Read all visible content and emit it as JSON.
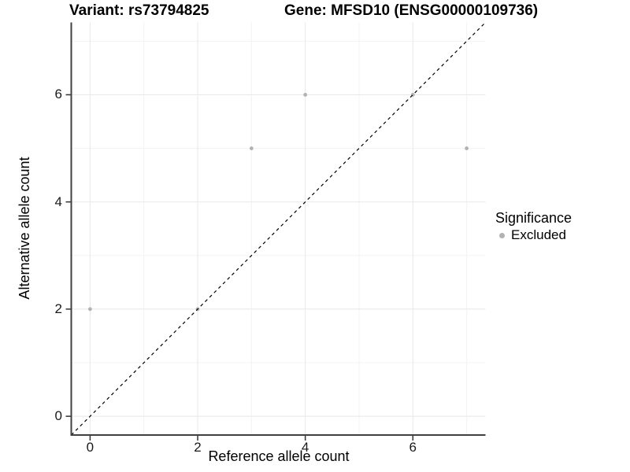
{
  "header": {
    "title_left": "Variant: rs73794825",
    "title_right": "Gene: MFSD10 (ENSG00000109736)"
  },
  "chart_data": {
    "type": "scatter",
    "xlabel": "Reference allele count",
    "ylabel": "Alternative allele count",
    "xlim": [
      -0.35,
      7.35
    ],
    "ylim": [
      -0.35,
      7.35
    ],
    "xticks": [
      0,
      2,
      4,
      6
    ],
    "yticks": [
      0,
      2,
      4,
      6
    ],
    "minor_gridlines_x": [
      1,
      3,
      5,
      7
    ],
    "minor_gridlines_y": [
      1,
      3,
      5,
      7
    ],
    "grid": true,
    "series": [
      {
        "name": "Excluded",
        "color": "#b3b3b3",
        "points": [
          [
            0,
            2
          ],
          [
            2,
            2
          ],
          [
            3,
            5
          ],
          [
            4,
            6
          ],
          [
            6,
            6
          ],
          [
            7,
            5
          ]
        ]
      }
    ],
    "reference_line": {
      "type": "identity",
      "style": "dashed",
      "color": "#000000"
    },
    "legend": {
      "title": "Significance",
      "position": "right",
      "items": [
        {
          "label": "Excluded",
          "color": "#b3b3b3"
        }
      ]
    }
  },
  "colors": {
    "background": "#ffffff",
    "grid_major": "#e8e8e8",
    "grid_minor": "#f3f3f3",
    "axis_line": "#404040",
    "tick": "#333333",
    "text": "#000000"
  }
}
